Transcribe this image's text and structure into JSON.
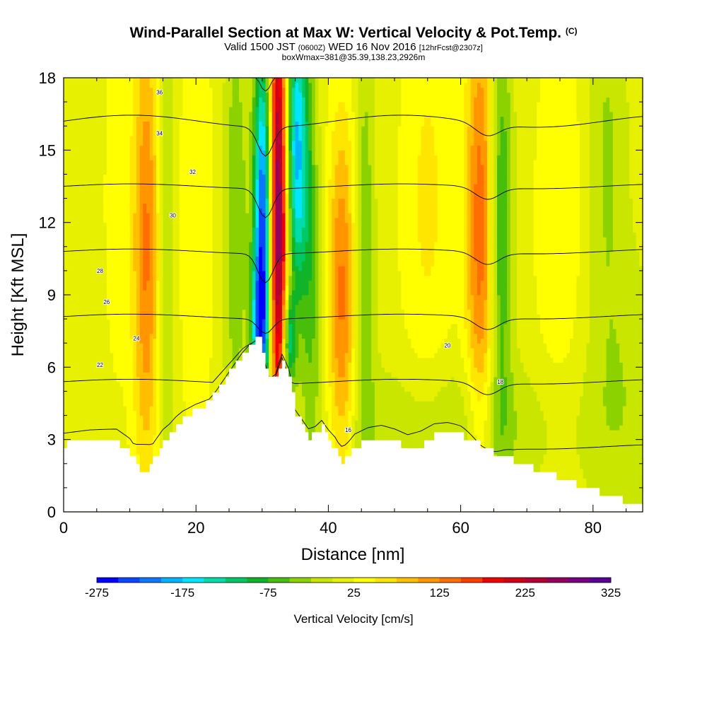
{
  "title": {
    "main": "Wind-Parallel Section at Max W: Vertical Velocity & Pot.Temp.",
    "main_unit": "(C)",
    "valid_a": "Valid 1500 JST",
    "valid_b": "(0600Z)",
    "valid_c": "WED 16 Nov 2016",
    "valid_d": "[12hrFcst@2307z]",
    "box": "boxWmax=381@35.39,138.23,2926m"
  },
  "chart_data": {
    "type": "heatmap",
    "xlabel": "Distance [nm]",
    "ylabel": "Height [Kft MSL]",
    "xlim": [
      0,
      87.5
    ],
    "ylim": [
      0,
      18
    ],
    "x_ticks": [
      0,
      20,
      40,
      60,
      80
    ],
    "y_ticks": [
      0,
      3,
      6,
      9,
      12,
      15,
      18
    ],
    "colorbar": {
      "label": "Vertical Velocity [cm/s]",
      "min": -275,
      "max": 325,
      "step": 25,
      "tick_labels": [
        "-275",
        "-175",
        "-75",
        "25",
        "125",
        "225",
        "325"
      ],
      "colors": [
        "#0000ff",
        "#0a46ff",
        "#0a78ff",
        "#00b4ff",
        "#00e6ff",
        "#00dcaa",
        "#00c864",
        "#10b428",
        "#46be0a",
        "#8cd200",
        "#c8e600",
        "#e6f000",
        "#ffff00",
        "#ffe600",
        "#ffbe00",
        "#ff9600",
        "#ff6e00",
        "#ff3c00",
        "#f00000",
        "#d20014",
        "#b40032",
        "#96005a",
        "#780082",
        "#5a0096"
      ]
    },
    "terrain": {
      "x": [
        0,
        4,
        8,
        10,
        11,
        12,
        13,
        14,
        15,
        16,
        17,
        18,
        20,
        22,
        23,
        24,
        25,
        26,
        27,
        28,
        29,
        29.5,
        30,
        31,
        32,
        33,
        34,
        35,
        36,
        37,
        38,
        39,
        40,
        41,
        42,
        43,
        44,
        46,
        48,
        50,
        52,
        54,
        56,
        58,
        60,
        62,
        64,
        66,
        68,
        70,
        72,
        74,
        76,
        78,
        80,
        82,
        84,
        86,
        87.5
      ],
      "y": [
        2.8,
        2.9,
        2.9,
        2.4,
        1.9,
        1.7,
        1.9,
        2.4,
        2.9,
        3.2,
        3.6,
        3.9,
        4.3,
        4.6,
        5.0,
        5.4,
        5.8,
        6.2,
        6.6,
        6.9,
        7.1,
        7.2,
        6.6,
        5.6,
        5.6,
        6.4,
        5.6,
        4.1,
        3.6,
        3.1,
        3.2,
        3.5,
        3.0,
        2.6,
        2.0,
        2.3,
        2.7,
        3.0,
        3.1,
        2.9,
        2.6,
        2.8,
        3.2,
        3.3,
        3.2,
        2.9,
        2.6,
        2.3,
        2.1,
        1.9,
        1.7,
        1.5,
        1.3,
        1.1,
        0.9,
        0.7,
        0.5,
        0.4,
        0.4
      ]
    },
    "w_features": [
      {
        "x": 30.2,
        "y": 11.5,
        "sx": 1.0,
        "sy": 5.5,
        "amp": -280
      },
      {
        "x": 29.4,
        "y": 7.5,
        "sx": 0.8,
        "sy": 2.0,
        "amp": -120
      },
      {
        "x": 35.2,
        "y": 15.0,
        "sx": 1.3,
        "sy": 4.5,
        "amp": -200
      },
      {
        "x": 26.0,
        "y": 12.0,
        "sx": 1.2,
        "sy": 6.0,
        "amp": -60
      },
      {
        "x": 37.5,
        "y": 9.0,
        "sx": 1.0,
        "sy": 5.0,
        "amp": -60
      },
      {
        "x": 32.4,
        "y": 12.5,
        "sx": 1.1,
        "sy": 7.0,
        "amp": 300
      },
      {
        "x": 34.0,
        "y": 7.0,
        "sx": 0.7,
        "sy": 1.5,
        "amp": -150
      },
      {
        "x": 42.0,
        "y": 9.0,
        "sx": 1.5,
        "sy": 5.5,
        "amp": 120
      },
      {
        "x": 45.5,
        "y": 10.0,
        "sx": 1.0,
        "sy": 7.0,
        "amp": -60
      },
      {
        "x": 12.5,
        "y": 11.0,
        "sx": 1.5,
        "sy": 7.0,
        "amp": 120
      },
      {
        "x": 15.5,
        "y": 11.0,
        "sx": 1.0,
        "sy": 7.0,
        "amp": -45
      },
      {
        "x": 8.0,
        "y": 13.0,
        "sx": 1.5,
        "sy": 6.0,
        "amp": 30
      },
      {
        "x": 20.0,
        "y": 12.0,
        "sx": 2.0,
        "sy": 7.0,
        "amp": 40
      },
      {
        "x": 63.0,
        "y": 12.0,
        "sx": 1.6,
        "sy": 7.0,
        "amp": 130
      },
      {
        "x": 66.0,
        "y": 12.0,
        "sx": 1.2,
        "sy": 6.0,
        "amp": -100
      },
      {
        "x": 55.0,
        "y": 13.0,
        "sx": 3.0,
        "sy": 7.0,
        "amp": 45
      },
      {
        "x": 75.0,
        "y": 12.0,
        "sx": 3.0,
        "sy": 7.0,
        "amp": 35
      },
      {
        "x": 82.0,
        "y": 15.0,
        "sx": 2.0,
        "sy": 5.0,
        "amp": -40
      },
      {
        "x": 60.0,
        "y": 3.5,
        "sx": 12.0,
        "sy": 2.0,
        "amp": -40
      },
      {
        "x": 84.0,
        "y": 5.0,
        "sx": 4.0,
        "sy": 4.0,
        "amp": -30
      }
    ],
    "theta_contours": [
      16,
      18,
      20,
      22,
      24,
      26,
      28,
      30,
      32,
      34,
      36
    ],
    "contour_labels": [
      "36",
      "34",
      "32",
      "30",
      "28",
      "26",
      "24",
      "22",
      "20",
      "18",
      "16"
    ]
  }
}
